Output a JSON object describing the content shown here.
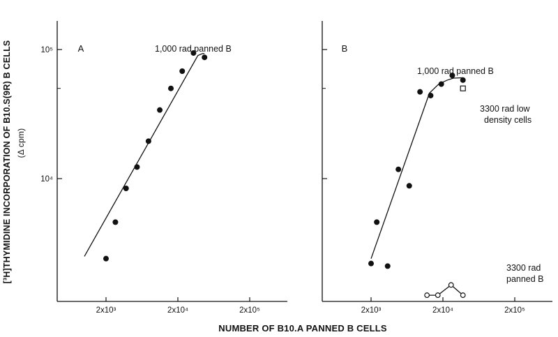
{
  "figure": {
    "y_axis_label": "[³H]THYMIDINE INCORPORATION OF B10.S(9R) B CELLS",
    "y_axis_unit": "(Δ cpm)",
    "x_axis_label": "NUMBER OF B10.A PANNED B CELLS"
  },
  "chart_data": [
    {
      "panel": "A",
      "type": "scatter",
      "x_scale": "log",
      "y_scale": "log",
      "xlim": [
        700,
        560000
      ],
      "ylim": [
        1250,
        170000
      ],
      "x_ticks": [
        {
          "value": 2000,
          "label": "2x10³"
        },
        {
          "value": 20000,
          "label": "2x10⁴"
        },
        {
          "value": 200000,
          "label": "2x10⁵"
        }
      ],
      "y_ticks": [
        {
          "value": 10000,
          "label": "10⁴"
        },
        {
          "value": 100000,
          "label": "10⁵"
        }
      ],
      "y_minor_ticks": [
        50000
      ],
      "series": [
        {
          "name": "1,000 rad panned B",
          "marker": "filled-circle",
          "points": [
            [
              2000,
              2400
            ],
            [
              2700,
              4600
            ],
            [
              3800,
              8400
            ],
            [
              5400,
              12300
            ],
            [
              7800,
              19500
            ],
            [
              11200,
              34000
            ],
            [
              16000,
              50000
            ],
            [
              23000,
              68000
            ],
            [
              33000,
              94000
            ],
            [
              47000,
              87000
            ]
          ],
          "curve": [
            [
              1000,
              2500
            ],
            [
              38000,
              90000
            ],
            [
              44000,
              93000
            ],
            [
              47000,
              93000
            ]
          ]
        }
      ]
    },
    {
      "panel": "B",
      "type": "scatter",
      "x_scale": "log",
      "y_scale": "log",
      "xlim": [
        700,
        560000
      ],
      "ylim": [
        1250,
        170000
      ],
      "x_ticks": [
        {
          "value": 2000,
          "label": "2x10³"
        },
        {
          "value": 20000,
          "label": "2x10⁴"
        },
        {
          "value": 200000,
          "label": "2x10⁵"
        }
      ],
      "y_ticks": [
        {
          "value": 10000,
          "label": "10⁴"
        },
        {
          "value": 100000,
          "label": "10⁵"
        }
      ],
      "y_minor_ticks": [
        50000
      ],
      "series": [
        {
          "name": "1,000 rad panned B",
          "marker": "filled-circle",
          "points": [
            [
              2000,
              2200
            ],
            [
              2400,
              4600
            ],
            [
              3400,
              2100
            ],
            [
              4800,
              11800
            ],
            [
              6800,
              8800
            ],
            [
              9600,
              47000
            ],
            [
              13500,
              44000
            ],
            [
              19000,
              54000
            ],
            [
              27000,
              63000
            ],
            [
              38000,
              58000
            ]
          ],
          "curve": [
            [
              2000,
              2400
            ],
            [
              13000,
              46000
            ],
            [
              17500,
              54000
            ],
            [
              23000,
              58000
            ],
            [
              28000,
              60000
            ],
            [
              38000,
              60500
            ]
          ]
        },
        {
          "name": "3300 rad low density cells",
          "marker": "open-square",
          "points": [
            [
              38000,
              50000
            ]
          ],
          "curve": []
        },
        {
          "name": "3300 rad panned B",
          "marker": "open-circle",
          "points": [
            [
              12000,
              1250
            ],
            [
              17000,
              1250
            ],
            [
              26000,
              1500
            ],
            [
              38000,
              1250
            ]
          ],
          "curve": [
            [
              12000,
              1250
            ],
            [
              17000,
              1250
            ],
            [
              26000,
              1500
            ],
            [
              38000,
              1250
            ]
          ]
        }
      ],
      "annotations": [
        {
          "text": "1,000 rad panned B"
        },
        {
          "text": "3300 rad low"
        },
        {
          "text": "density cells"
        },
        {
          "text": "3300 rad"
        },
        {
          "text": "panned B"
        }
      ]
    }
  ]
}
